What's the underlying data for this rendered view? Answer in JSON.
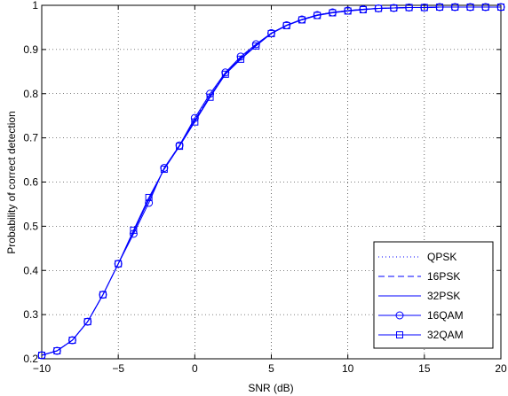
{
  "chart_data": {
    "type": "line",
    "xlabel": "SNR (dB)",
    "ylabel": "Probability of correct detection",
    "xlim": [
      -10,
      20
    ],
    "ylim": [
      0.2,
      1.0
    ],
    "x_ticks": [
      "−10",
      "−5",
      "0",
      "5",
      "10",
      "15",
      "20"
    ],
    "y_ticks": [
      "0.2",
      "0.3",
      "0.4",
      "0.5",
      "0.6",
      "0.7",
      "0.8",
      "0.9",
      "1"
    ],
    "grid": true,
    "legend_position": "bottom-right",
    "line_color": "#0000ff",
    "x": [
      -10,
      -9,
      -8,
      -7,
      -6,
      -5,
      -4,
      -3,
      -2,
      -1,
      0,
      1,
      2,
      3,
      4,
      5,
      6,
      7,
      8,
      9,
      10,
      11,
      12,
      13,
      14,
      15,
      16,
      17,
      18,
      19,
      20
    ],
    "series": [
      {
        "name": "QPSK",
        "style": "dotted",
        "marker": "none",
        "values": [
          0.208,
          0.218,
          0.242,
          0.284,
          0.345,
          0.415,
          0.488,
          0.56,
          0.63,
          0.683,
          0.742,
          0.797,
          0.847,
          0.882,
          0.91,
          0.937,
          0.955,
          0.968,
          0.978,
          0.984,
          0.988,
          0.991,
          0.993,
          0.994,
          0.995,
          0.995,
          0.996,
          0.996,
          0.996,
          0.996,
          0.996
        ]
      },
      {
        "name": "16PSK",
        "style": "dashed",
        "marker": "none",
        "values": [
          0.208,
          0.218,
          0.242,
          0.284,
          0.345,
          0.415,
          0.488,
          0.56,
          0.63,
          0.683,
          0.74,
          0.795,
          0.846,
          0.881,
          0.91,
          0.937,
          0.955,
          0.968,
          0.978,
          0.984,
          0.988,
          0.991,
          0.993,
          0.994,
          0.995,
          0.995,
          0.996,
          0.996,
          0.996,
          0.996,
          0.996
        ]
      },
      {
        "name": "32PSK",
        "style": "solid",
        "marker": "none",
        "values": [
          0.208,
          0.218,
          0.242,
          0.284,
          0.345,
          0.415,
          0.488,
          0.56,
          0.63,
          0.683,
          0.739,
          0.794,
          0.846,
          0.88,
          0.909,
          0.937,
          0.955,
          0.968,
          0.978,
          0.984,
          0.988,
          0.991,
          0.993,
          0.994,
          0.995,
          0.995,
          0.996,
          0.996,
          0.996,
          0.996,
          0.996
        ]
      },
      {
        "name": "16QAM",
        "style": "solid",
        "marker": "circle",
        "values": [
          0.208,
          0.218,
          0.242,
          0.284,
          0.345,
          0.415,
          0.483,
          0.553,
          0.632,
          0.683,
          0.745,
          0.8,
          0.848,
          0.884,
          0.912,
          0.937,
          0.955,
          0.968,
          0.978,
          0.984,
          0.988,
          0.991,
          0.993,
          0.994,
          0.995,
          0.995,
          0.996,
          0.996,
          0.996,
          0.996,
          0.996
        ]
      },
      {
        "name": "32QAM",
        "style": "solid",
        "marker": "square",
        "values": [
          0.208,
          0.218,
          0.242,
          0.284,
          0.345,
          0.415,
          0.491,
          0.565,
          0.629,
          0.681,
          0.736,
          0.792,
          0.844,
          0.878,
          0.908,
          0.936,
          0.954,
          0.967,
          0.977,
          0.983,
          0.987,
          0.99,
          0.993,
          0.994,
          0.995,
          0.995,
          0.996,
          0.996,
          0.996,
          0.996,
          0.996
        ]
      }
    ]
  }
}
